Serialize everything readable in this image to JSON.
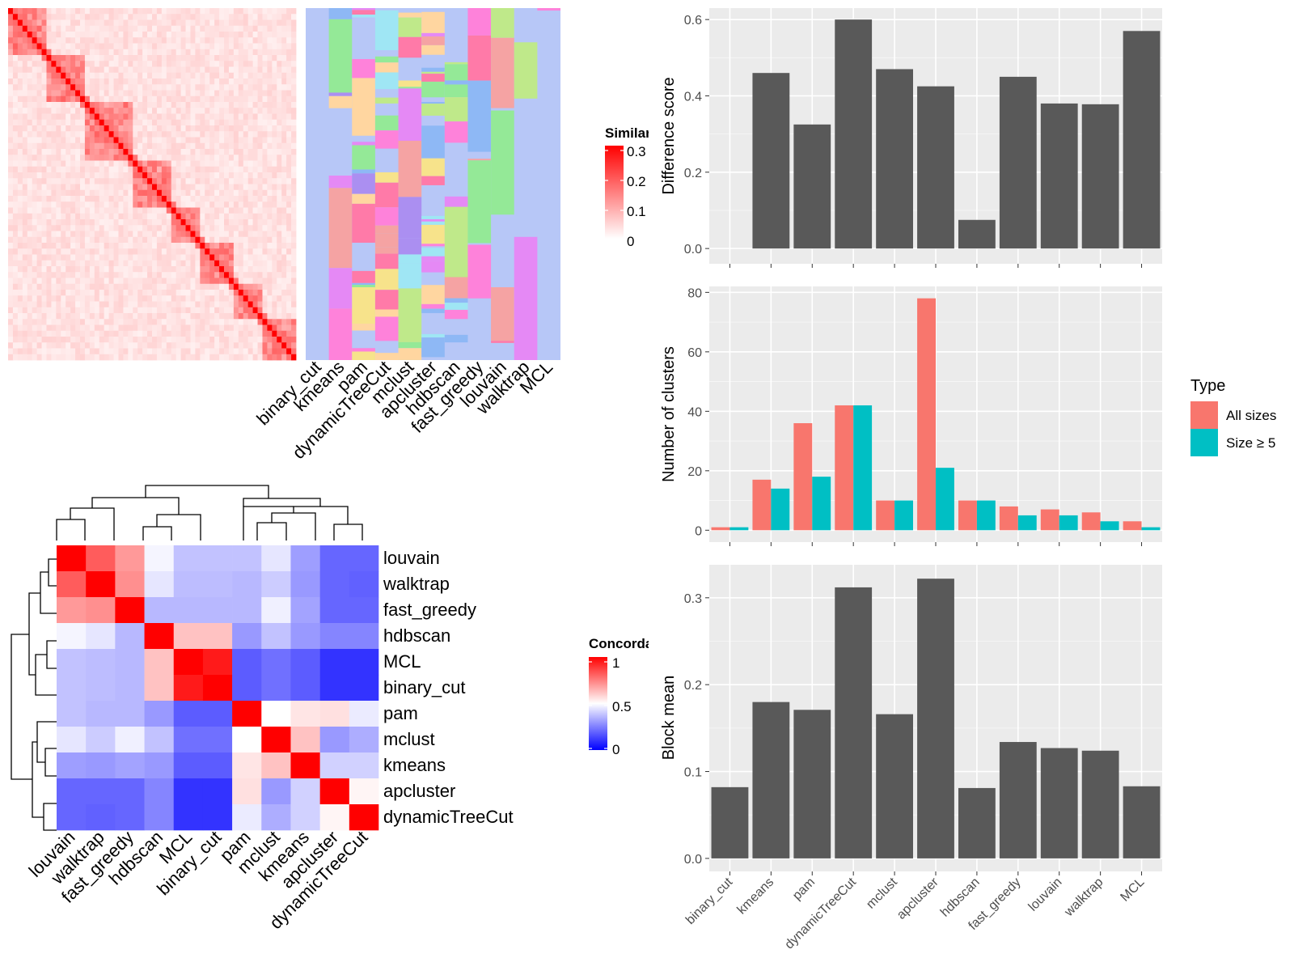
{
  "similarity_legend": {
    "title": "Similarity",
    "ticks": [
      "0.3",
      "0.2",
      "0.1",
      "0"
    ],
    "colors": [
      "#ffffff",
      "#ff0000"
    ]
  },
  "concordance_legend": {
    "title": "Concordance",
    "ticks": [
      "1",
      "0.5",
      "0"
    ],
    "colors": [
      "#0000ff",
      "#ffffff",
      "#ff0000"
    ]
  },
  "membership_methods": [
    "binary_cut",
    "kmeans",
    "pam",
    "dynamicTreeCut",
    "mclust",
    "apcluster",
    "hdbscan",
    "fast_greedy",
    "louvain",
    "walktrap",
    "MCL"
  ],
  "palette": {
    "background": "#b7c7f7",
    "bar_gray": "#595959",
    "panel_bg": "#ebebeb",
    "all_sizes": "#f8766d",
    "size_ge5": "#00bfc4"
  },
  "chart_data": [
    {
      "type": "heatmap",
      "name": "concordance",
      "title": "Concordance",
      "order": [
        "louvain",
        "walktrap",
        "fast_greedy",
        "hdbscan",
        "MCL",
        "binary_cut",
        "pam",
        "mclust",
        "kmeans",
        "apcluster",
        "dynamicTreeCut"
      ],
      "matrix": [
        [
          1.0,
          0.82,
          0.7,
          0.48,
          0.38,
          0.38,
          0.38,
          0.45,
          0.31,
          0.2,
          0.2
        ],
        [
          0.82,
          1.0,
          0.72,
          0.45,
          0.37,
          0.37,
          0.36,
          0.4,
          0.3,
          0.2,
          0.19
        ],
        [
          0.7,
          0.72,
          1.0,
          0.36,
          0.36,
          0.36,
          0.36,
          0.47,
          0.32,
          0.2,
          0.2
        ],
        [
          0.48,
          0.45,
          0.36,
          1.0,
          0.62,
          0.62,
          0.3,
          0.38,
          0.3,
          0.26,
          0.26
        ],
        [
          0.38,
          0.37,
          0.36,
          0.62,
          1.0,
          0.95,
          0.18,
          0.22,
          0.18,
          0.1,
          0.1
        ],
        [
          0.38,
          0.37,
          0.36,
          0.62,
          0.95,
          1.0,
          0.18,
          0.22,
          0.18,
          0.1,
          0.1
        ],
        [
          0.38,
          0.36,
          0.36,
          0.3,
          0.18,
          0.18,
          1.0,
          0.5,
          0.55,
          0.56,
          0.46
        ],
        [
          0.45,
          0.4,
          0.47,
          0.38,
          0.22,
          0.22,
          0.5,
          1.0,
          0.62,
          0.3,
          0.34
        ],
        [
          0.31,
          0.3,
          0.32,
          0.3,
          0.18,
          0.18,
          0.55,
          0.62,
          1.0,
          0.41,
          0.41
        ],
        [
          0.2,
          0.2,
          0.2,
          0.26,
          0.1,
          0.1,
          0.56,
          0.3,
          0.41,
          1.0,
          0.52
        ],
        [
          0.2,
          0.19,
          0.2,
          0.26,
          0.1,
          0.1,
          0.46,
          0.34,
          0.41,
          0.52,
          1.0
        ]
      ],
      "colorscale": [
        [
          0,
          "#0000ff"
        ],
        [
          0.5,
          "#ffffff"
        ],
        [
          1,
          "#ff0000"
        ]
      ],
      "range": [
        0,
        1
      ]
    },
    {
      "type": "bar",
      "name": "difference-score",
      "ylabel": "Difference score",
      "categories": [
        "binary_cut",
        "kmeans",
        "pam",
        "dynamicTreeCut",
        "mclust",
        "apcluster",
        "hdbscan",
        "fast_greedy",
        "louvain",
        "walktrap",
        "MCL"
      ],
      "values": [
        0.0,
        0.46,
        0.325,
        0.6,
        0.47,
        0.425,
        0.075,
        0.45,
        0.38,
        0.378,
        0.57
      ],
      "ylim": [
        -0.04,
        0.63
      ],
      "yticks": [
        "0.0",
        "0.2",
        "0.4",
        "0.6"
      ],
      "grid": true
    },
    {
      "type": "bar",
      "name": "number-of-clusters",
      "ylabel": "Number of clusters",
      "categories": [
        "binary_cut",
        "kmeans",
        "pam",
        "dynamicTreeCut",
        "mclust",
        "apcluster",
        "hdbscan",
        "fast_greedy",
        "louvain",
        "walktrap",
        "MCL"
      ],
      "series": [
        {
          "name": "All sizes",
          "values": [
            1,
            17,
            36,
            42,
            10,
            78,
            10,
            8,
            7,
            6,
            3
          ]
        },
        {
          "name": "Size ≥ 5",
          "values": [
            1,
            14,
            18,
            42,
            10,
            21,
            10,
            5,
            5,
            3,
            1
          ]
        }
      ],
      "ylim": [
        -4,
        82
      ],
      "yticks": [
        "0",
        "20",
        "40",
        "60",
        "80"
      ],
      "legend": {
        "title": "Type",
        "position": "right"
      },
      "grid": true
    },
    {
      "type": "bar",
      "name": "block-mean",
      "ylabel": "Block mean",
      "categories": [
        "binary_cut",
        "kmeans",
        "pam",
        "dynamicTreeCut",
        "mclust",
        "apcluster",
        "hdbscan",
        "fast_greedy",
        "louvain",
        "walktrap",
        "MCL"
      ],
      "values": [
        0.082,
        0.18,
        0.171,
        0.312,
        0.166,
        0.322,
        0.081,
        0.134,
        0.127,
        0.124,
        0.083
      ],
      "ylim": [
        -0.015,
        0.338
      ],
      "yticks": [
        "0.0",
        "0.1",
        "0.2",
        "0.3"
      ],
      "grid": true
    }
  ]
}
